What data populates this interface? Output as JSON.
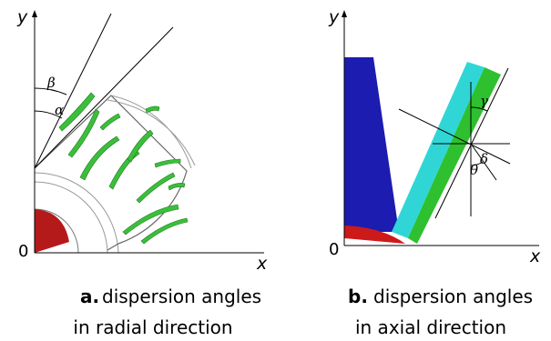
{
  "panels": [
    {
      "axis_y": "y",
      "axis_x": "x",
      "origin": "0",
      "angles": [
        "β",
        "α"
      ],
      "caption_label": "a.",
      "caption_lines": [
        "dispersion angles",
        "in radial direction"
      ]
    },
    {
      "axis_y": "y",
      "axis_x": "x",
      "origin": "0",
      "angles": [
        "γ",
        "δ",
        "θ"
      ],
      "caption_label": "b.",
      "caption_lines": [
        "dispersion angles",
        "in axial direction"
      ]
    }
  ]
}
